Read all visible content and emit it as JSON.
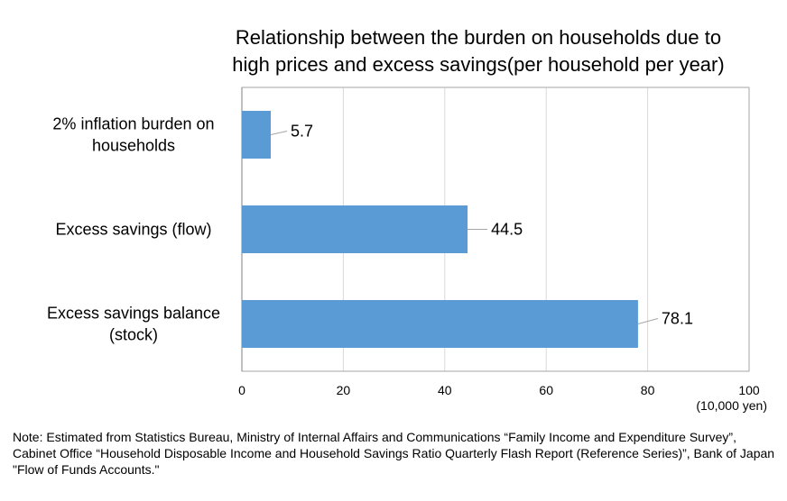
{
  "chart_data": {
    "type": "bar",
    "orientation": "horizontal",
    "title_lines": [
      "Relationship between the burden on households due to",
      "high prices and excess savings(per household per year)"
    ],
    "categories": [
      [
        "2% inflation burden on",
        "households"
      ],
      [
        "Excess savings (flow)"
      ],
      [
        "Excess savings balance",
        "(stock)"
      ]
    ],
    "values": [
      5.7,
      44.5,
      78.1
    ],
    "value_labels": [
      "5.7",
      "44.5",
      "78.1"
    ],
    "xlim": [
      0,
      100
    ],
    "xticks": [
      "0",
      "20",
      "40",
      "60",
      "80",
      "100"
    ],
    "x_unit": "(10,000 yen)",
    "grid": true,
    "bar_color": "#5B9BD5",
    "gridline_color": "#d9d9d9"
  },
  "note": "Note: Estimated from Statistics Bureau, Ministry of Internal Affairs and Communications “Family Income and Expenditure Survey”, Cabinet Office “Household Disposable Income and Household Savings Ratio Quarterly Flash Report (Reference Series)”, Bank of Japan \"Flow of Funds Accounts.\""
}
